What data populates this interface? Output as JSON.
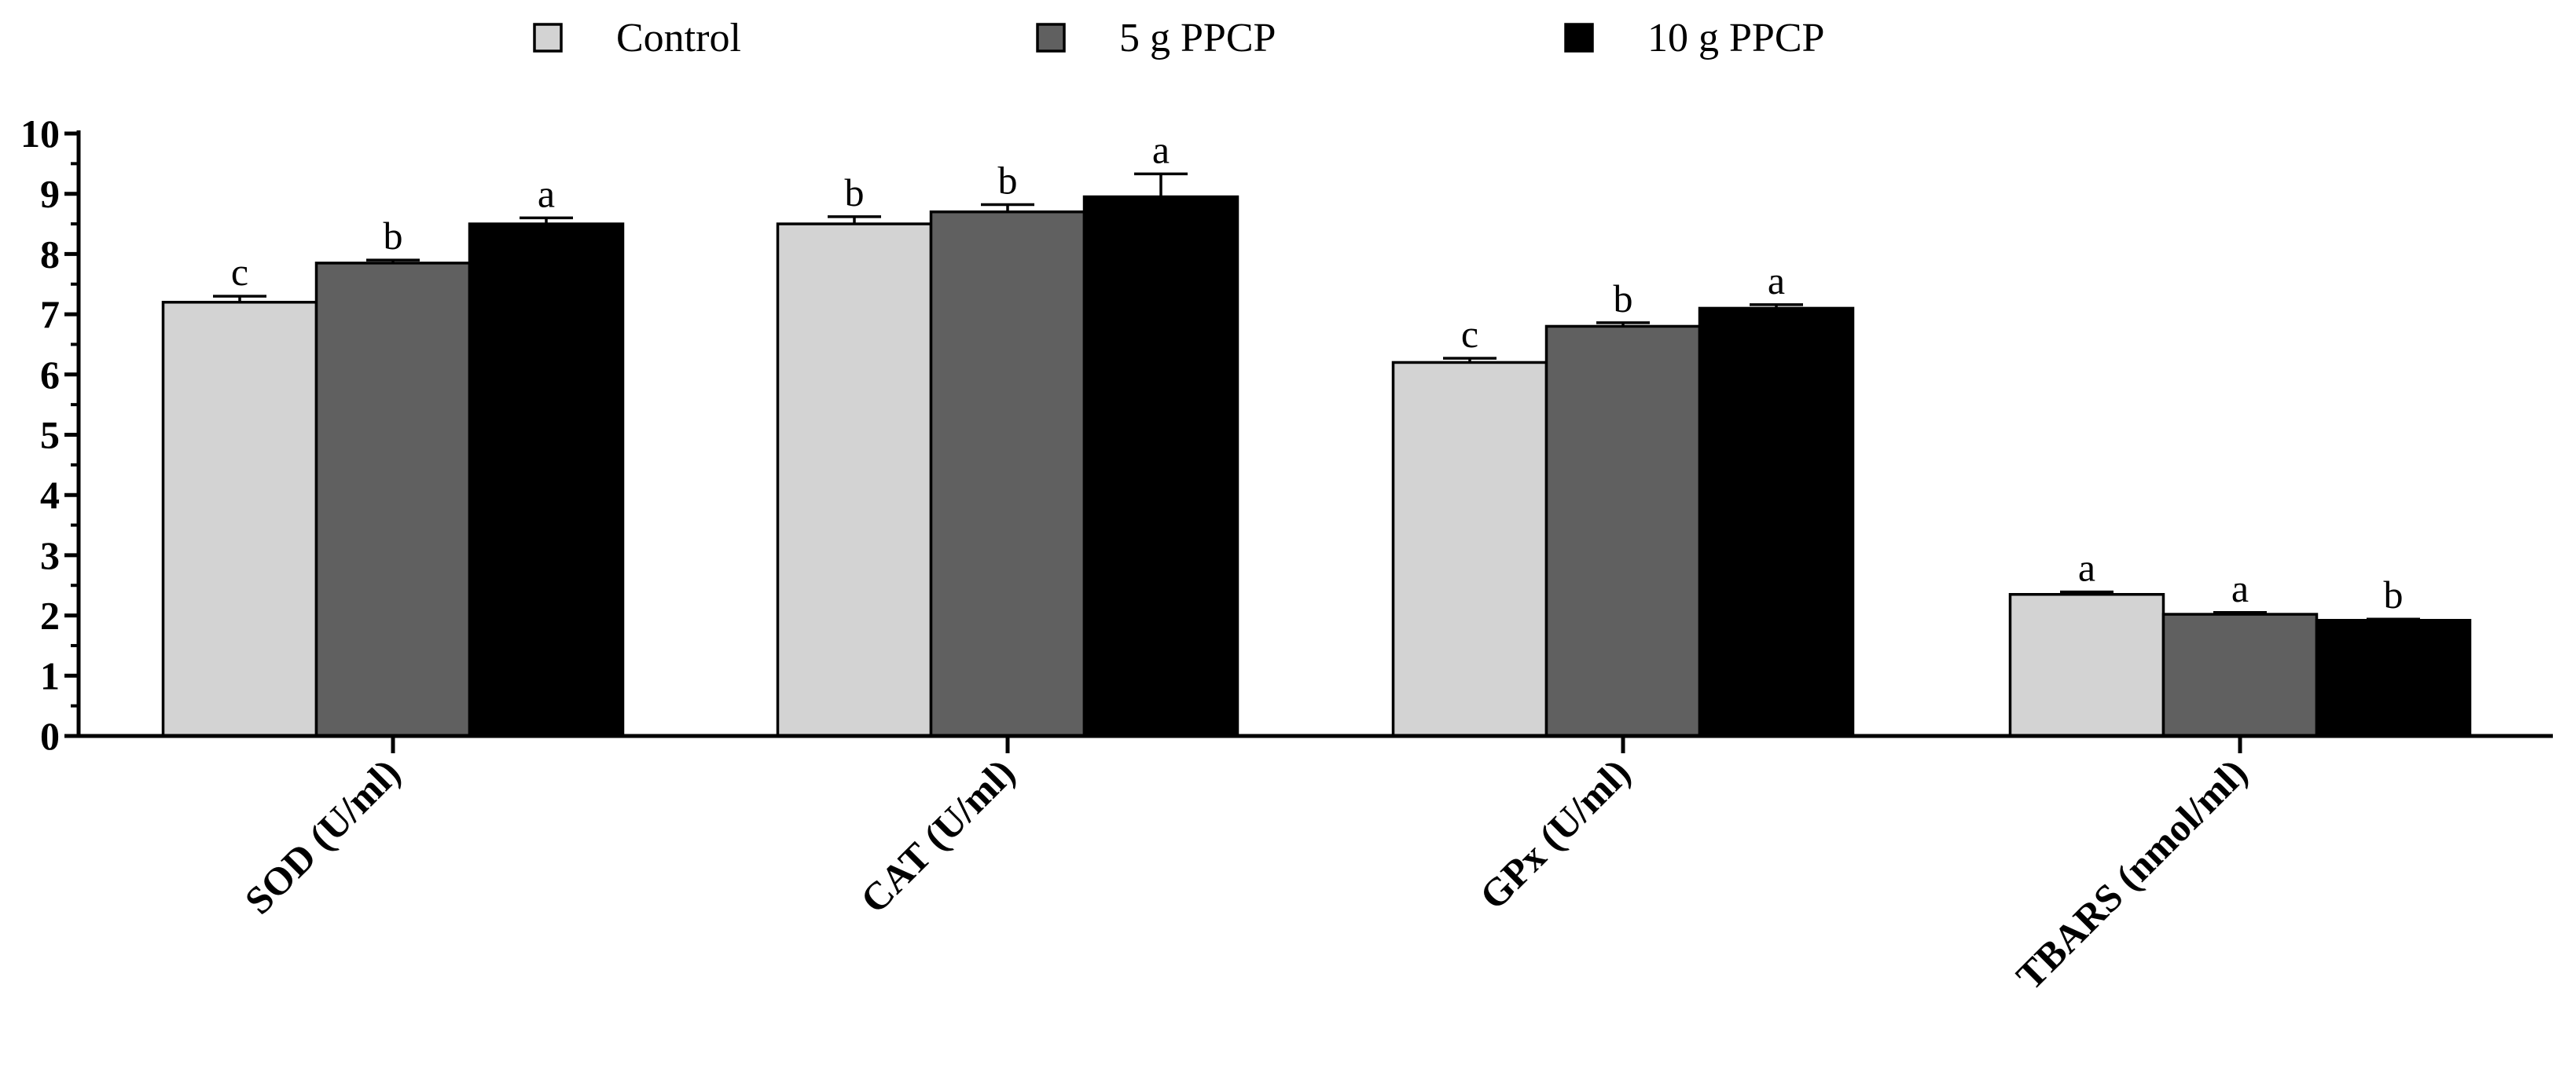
{
  "chart_data": {
    "type": "bar",
    "title": "",
    "xlabel": "",
    "ylabel": "",
    "ylim": [
      0,
      10
    ],
    "yticks": [
      0,
      1,
      2,
      3,
      4,
      5,
      6,
      7,
      8,
      9,
      10
    ],
    "ytick_labels": [
      "0",
      "1",
      "2",
      "3",
      "4",
      "5",
      "6",
      "7",
      "8",
      "9",
      "10"
    ],
    "categories": [
      "SOD (U/ml)",
      "CAT (U/ml)",
      "GPx (U/ml)",
      "TBARS (nmol/ml)"
    ],
    "legend_position": "top-center",
    "series": [
      {
        "name": "Control",
        "color": "#d3d3d3",
        "values": [
          7.2,
          8.5,
          6.2,
          2.35
        ],
        "errors": [
          0.1,
          0.12,
          0.07,
          0.04
        ],
        "labels": [
          "c",
          "b",
          "c",
          "a"
        ]
      },
      {
        "name": "5 g PPCP",
        "color": "#606060",
        "values": [
          7.85,
          8.7,
          6.8,
          2.02
        ],
        "errors": [
          0.05,
          0.12,
          0.06,
          0.03
        ],
        "labels": [
          "b",
          "b",
          "b",
          "a"
        ]
      },
      {
        "name": "10 g PPCP",
        "color": "#000000",
        "values": [
          8.5,
          8.95,
          7.1,
          1.92
        ],
        "errors": [
          0.1,
          0.38,
          0.06,
          0.02
        ],
        "labels": [
          "a",
          "a",
          "a",
          "b"
        ]
      }
    ]
  }
}
